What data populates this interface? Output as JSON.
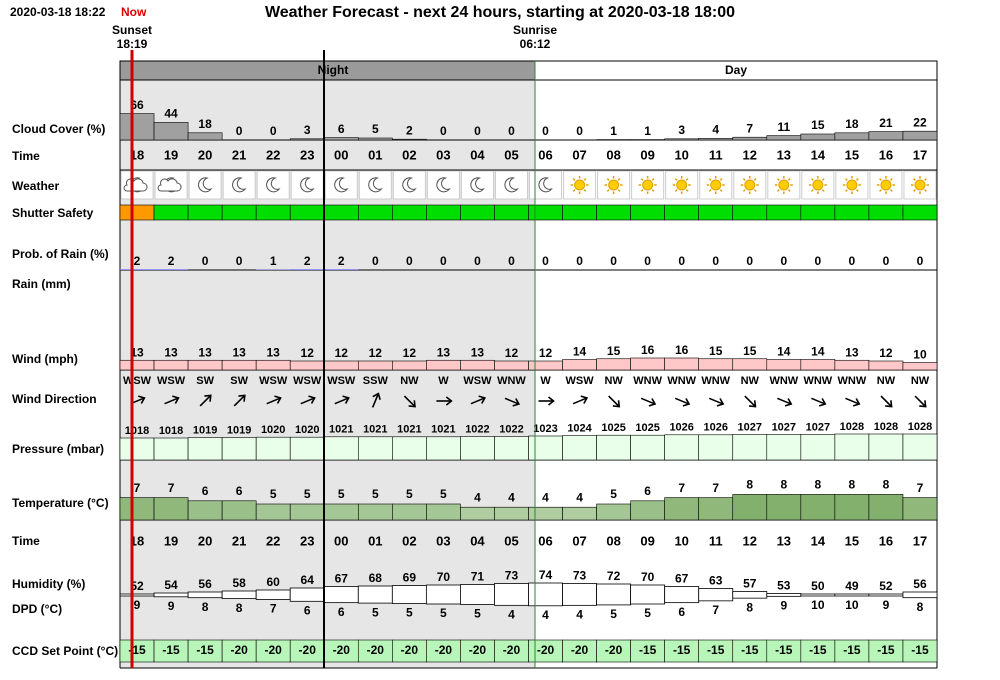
{
  "header": {
    "timestamp": "2020-03-18 18:22",
    "now": "Now",
    "title": "Weather Forecast - next 24 hours, starting at 2020-03-18 18:00"
  },
  "sun": {
    "sunset_label": "Sunset",
    "sunset_time": "18:19",
    "sunrise_label": "Sunrise",
    "sunrise_time": "06:12"
  },
  "periods": {
    "night": "Night",
    "day": "Day"
  },
  "row_labels": {
    "cloud_cover": "Cloud Cover (%)",
    "time": "Time",
    "weather": "Weather",
    "shutter_safety": "Shutter Safety",
    "rain_probability": "Prob. of Rain (%)",
    "rain": "Rain (mm)",
    "wind_speed": "Wind (mph)",
    "wind_direction": "Wind Direction",
    "pressure": "Pressure (mbar)",
    "temperature": "Temperature (°C)",
    "time_2": "Time",
    "humidity": "Humidity (%)",
    "dpd": "DPD (°C)",
    "ccd_set_point": "CCD Set Point (°C)"
  },
  "hours": [
    "18",
    "19",
    "20",
    "21",
    "22",
    "23",
    "00",
    "01",
    "02",
    "03",
    "04",
    "05",
    "06",
    "07",
    "08",
    "09",
    "10",
    "11",
    "12",
    "13",
    "14",
    "15",
    "16",
    "17"
  ],
  "cloud_cover": [
    66,
    44,
    18,
    0,
    0,
    3,
    6,
    5,
    2,
    0,
    0,
    0,
    0,
    0,
    1,
    1,
    3,
    4,
    7,
    11,
    15,
    18,
    21,
    22
  ],
  "rain_probability": [
    2,
    2,
    0,
    0,
    1,
    2,
    2,
    0,
    0,
    0,
    0,
    0,
    0,
    0,
    0,
    0,
    0,
    0,
    0,
    0,
    0,
    0,
    0,
    0
  ],
  "wind_speed": [
    13,
    13,
    13,
    13,
    13,
    12,
    12,
    12,
    12,
    13,
    13,
    12,
    12,
    14,
    15,
    16,
    16,
    15,
    15,
    14,
    14,
    13,
    12,
    10
  ],
  "wind_direction": [
    "WSW",
    "WSW",
    "SW",
    "SW",
    "WSW",
    "WSW",
    "WSW",
    "SSW",
    "NW",
    "W",
    "WSW",
    "WNW",
    "W",
    "WSW",
    "NW",
    "WNW",
    "WNW",
    "WNW",
    "NW",
    "WNW",
    "WNW",
    "WNW",
    "NW",
    "NW"
  ],
  "pressure": [
    1018,
    1018,
    1019,
    1019,
    1020,
    1020,
    1021,
    1021,
    1021,
    1021,
    1022,
    1022,
    1023,
    1024,
    1025,
    1025,
    1026,
    1026,
    1027,
    1027,
    1027,
    1028,
    1028,
    1028
  ],
  "temperature": [
    7,
    7,
    6,
    6,
    5,
    5,
    5,
    5,
    5,
    5,
    4,
    4,
    4,
    4,
    5,
    6,
    7,
    7,
    8,
    8,
    8,
    8,
    8,
    7
  ],
  "humidity": [
    52,
    54,
    56,
    58,
    60,
    64,
    67,
    68,
    69,
    70,
    71,
    73,
    74,
    73,
    72,
    70,
    67,
    63,
    57,
    53,
    50,
    49,
    52,
    56
  ],
  "dpd": [
    9,
    9,
    8,
    8,
    7,
    6,
    6,
    5,
    5,
    5,
    5,
    4,
    4,
    4,
    5,
    5,
    6,
    7,
    8,
    9,
    10,
    10,
    9,
    8
  ],
  "ccd_set_point": [
    -15,
    -15,
    -15,
    -20,
    -20,
    -20,
    -20,
    -20,
    -20,
    -20,
    -20,
    -20,
    -20,
    -20,
    -20,
    -15,
    -15,
    -15,
    -15,
    -15,
    -15,
    -15,
    -15,
    -15
  ]
}
